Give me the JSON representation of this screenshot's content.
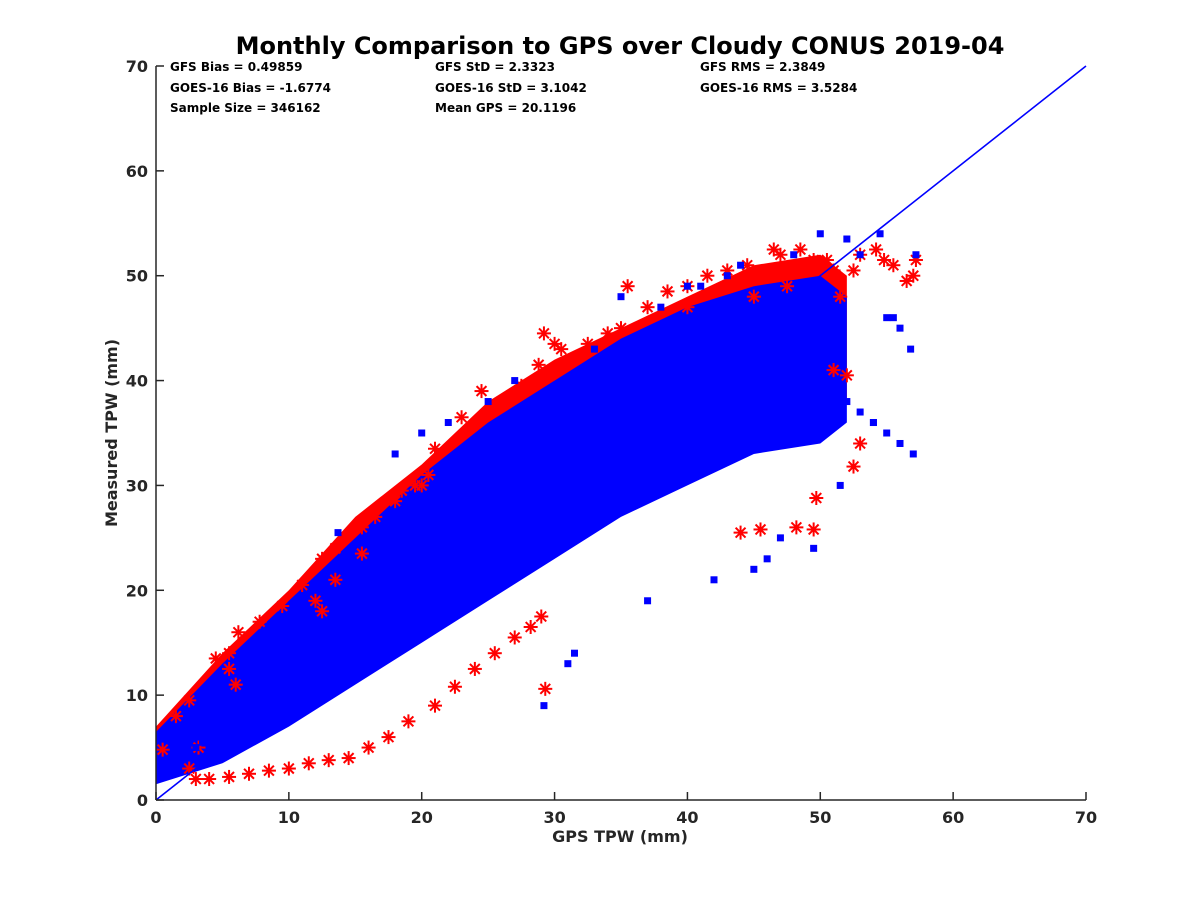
{
  "chart_data": {
    "type": "scatter",
    "title": "Monthly Comparison to GPS over Cloudy CONUS 2019-04",
    "xlabel": "GPS TPW (mm)",
    "ylabel": "Measured TPW (mm)",
    "xlim": [
      0,
      70
    ],
    "ylim": [
      0,
      70
    ],
    "xticks": [
      "0",
      "10",
      "20",
      "30",
      "40",
      "50",
      "60",
      "70"
    ],
    "yticks": [
      "0",
      "10",
      "20",
      "30",
      "40",
      "50",
      "60",
      "70"
    ],
    "grid": false,
    "legend": "none",
    "colors": {
      "series_a": "#ff0000",
      "series_b": "#0000ff",
      "reference_line": "#0000ff"
    },
    "reference_line": {
      "x": [
        0,
        70
      ],
      "y": [
        0,
        70
      ]
    },
    "stats": [
      "GFS Bias = 0.49859",
      "GFS StD = 2.3323",
      "GFS RMS = 2.3849",
      "GOES-16 Bias = -1.6774",
      "GOES-16 StD = 3.1042",
      "GOES-16 RMS = 3.5284",
      "Sample Size = 346162",
      "Mean GPS = 20.1196"
    ],
    "series": [
      {
        "marker": "asterisk",
        "color": "#ff0000",
        "x": [
          0.5,
          1.5,
          2.5,
          3.2,
          4.5,
          5.5,
          6.2,
          7.8,
          9.5,
          11,
          12.5,
          13.5,
          15.5,
          16.5,
          18,
          19.5,
          20.5,
          21,
          23,
          24.5,
          26,
          27.5,
          28.8,
          29.2,
          30.5,
          32.5,
          34,
          35.5,
          37,
          38.5,
          40,
          41.5,
          43,
          44.5,
          46.5,
          47,
          48.5,
          49.5,
          50.5,
          51,
          51.5,
          52.5,
          53,
          54.2,
          54.8,
          55.5,
          56.5,
          57.2,
          57,
          49.7,
          48.2,
          49.5,
          45.5,
          44,
          52,
          51,
          52.5,
          53,
          29.3,
          29,
          28.2,
          27,
          25.5,
          24,
          22.5,
          21,
          19,
          17.5,
          16,
          14.5,
          13,
          11.5,
          10,
          8.5,
          7,
          5.5,
          4,
          3,
          2.5,
          5.5,
          6,
          12,
          12.5,
          13.5,
          15.5,
          18.5,
          20,
          30,
          35,
          40,
          45,
          47.5,
          50
        ],
        "y": [
          4.8,
          8,
          9.5,
          5,
          13.5,
          12.5,
          16,
          17,
          18.5,
          20.5,
          23,
          24,
          26,
          27,
          28.5,
          30,
          31,
          33.5,
          36.5,
          39,
          38,
          39.5,
          41.5,
          44.5,
          43,
          43.5,
          44.5,
          49,
          47,
          48.5,
          49,
          50,
          50.5,
          51,
          52.5,
          52,
          52.5,
          51.5,
          51.5,
          50.5,
          48,
          50.5,
          52,
          52.5,
          51.5,
          51,
          49.5,
          51.5,
          50,
          28.8,
          26,
          25.8,
          25.8,
          25.5,
          40.5,
          41,
          31.8,
          34,
          10.6,
          17.5,
          16.5,
          15.5,
          14,
          12.5,
          10.8,
          9,
          7.5,
          6,
          5,
          4,
          3.8,
          3.5,
          3,
          2.8,
          2.5,
          2.2,
          2,
          2,
          3,
          14,
          11,
          19,
          18,
          21,
          23.5,
          29.5,
          30,
          43.5,
          45,
          47,
          48,
          49,
          51
        ]
      },
      {
        "marker": "square",
        "color": "#0000ff",
        "x": [
          0.5,
          1,
          1.5,
          2,
          2.5,
          3,
          3.5,
          4,
          5,
          6,
          7,
          8,
          9,
          10,
          11,
          12,
          13,
          14,
          15,
          16,
          17,
          18,
          19,
          20,
          21,
          22,
          23,
          24,
          25,
          26,
          27,
          28,
          29,
          30,
          31,
          32,
          33,
          34,
          35,
          36,
          37,
          38,
          39,
          40,
          41,
          42,
          43,
          44,
          45,
          46,
          47,
          48,
          49,
          50,
          51,
          52,
          53,
          54,
          55,
          56,
          57,
          29.2,
          31,
          31.5,
          37,
          42,
          45,
          46,
          47,
          49.5,
          51.5,
          54,
          55,
          54.5,
          56.8,
          57.2,
          13.7,
          18,
          20,
          22,
          25,
          27,
          33,
          35,
          38,
          40,
          41,
          43,
          44,
          48,
          50,
          52,
          53,
          55.5,
          56
        ],
        "y": [
          2.5,
          3,
          3.5,
          4,
          4.5,
          5,
          5.5,
          6,
          7,
          8,
          9,
          10,
          11,
          12,
          13,
          14,
          15,
          16,
          17,
          18,
          19,
          20,
          21,
          22,
          23,
          24,
          25,
          26,
          27,
          28,
          29,
          30,
          31,
          32,
          33,
          34,
          35,
          36,
          37,
          38,
          39,
          40,
          41,
          42,
          43,
          44,
          45,
          46,
          45,
          44,
          43,
          42,
          41,
          40,
          39,
          38,
          37,
          36,
          35,
          34,
          33,
          9,
          13,
          14,
          19,
          21,
          22,
          23,
          25,
          24,
          30,
          36,
          46,
          54,
          43,
          52,
          25.5,
          33,
          35,
          36,
          38,
          40,
          43,
          48,
          47,
          49,
          49,
          50,
          51,
          52,
          54,
          53.5,
          52,
          46,
          45
        ]
      }
    ]
  }
}
